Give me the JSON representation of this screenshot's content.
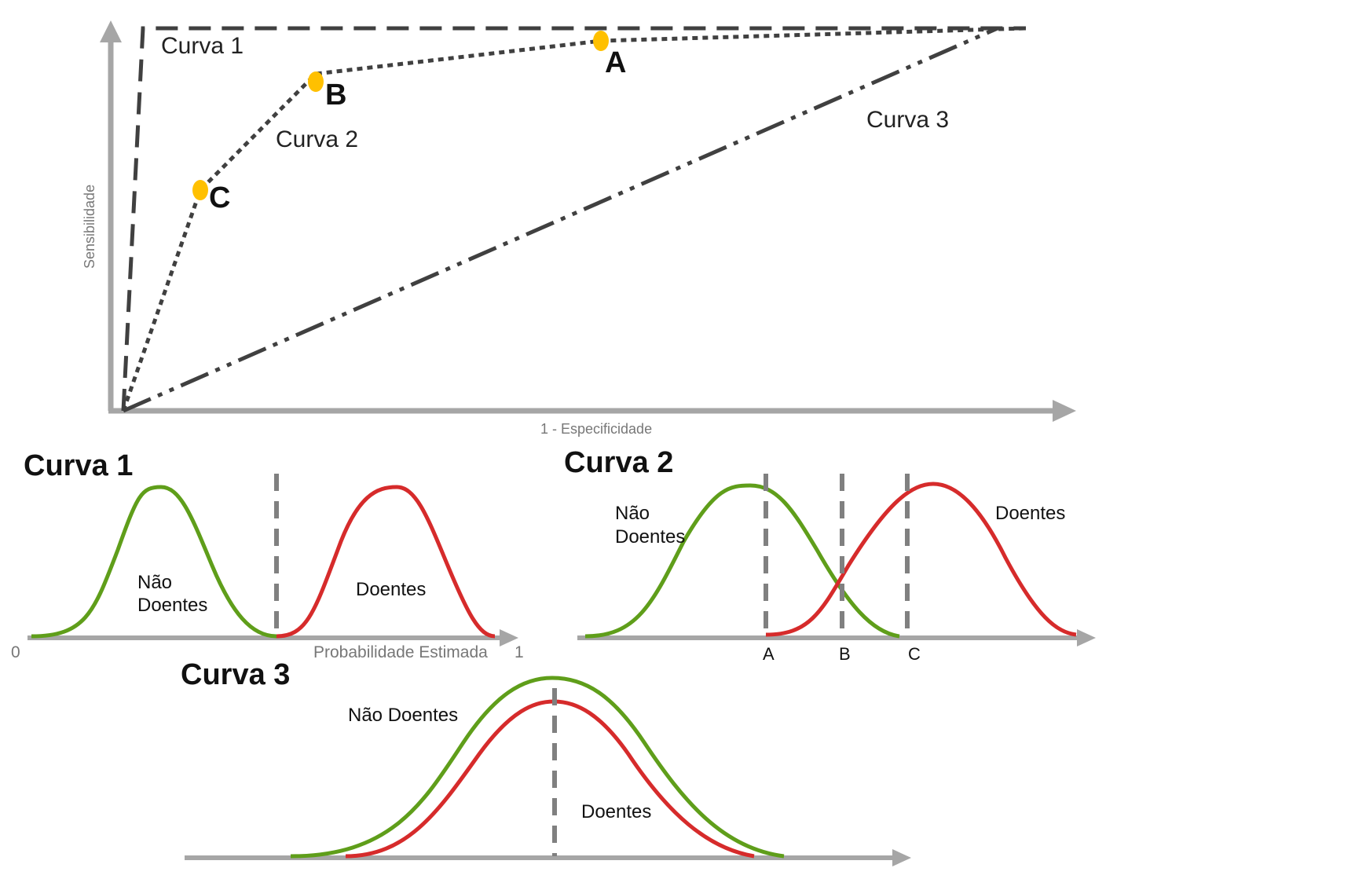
{
  "roc": {
    "y_axis_label": "Sensibilidade",
    "x_axis_label": "1 - Especificidade",
    "curve_labels": [
      "Curva 1",
      "Curva 2",
      "Curva 3"
    ],
    "points": [
      "A",
      "B",
      "C"
    ],
    "colors": {
      "axis": "#a6a6a6",
      "curve": "#404040",
      "point": "#ffc000"
    }
  },
  "panels": {
    "curva1": {
      "title": "Curva 1",
      "label_nao": "Não",
      "label_doentes_a": "Doentes",
      "label_doentes_b": "Doentes",
      "axis_start": "0",
      "axis_title": "Probabilidade Estimada",
      "axis_end": "1"
    },
    "curva2": {
      "title": "Curva 2",
      "label_nao": "Não",
      "label_doentes_a": "Doentes",
      "label_doentes_b": "Doentes",
      "thresholds": [
        "A",
        "B",
        "C"
      ]
    },
    "curva3": {
      "title": "Curva 3",
      "label_nao_doentes": "Não Doentes",
      "label_doentes": "Doentes"
    },
    "colors": {
      "healthy": "#5f9e1a",
      "sick": "#d62b2b",
      "threshold": "#808080",
      "axis": "#a6a6a6"
    }
  }
}
